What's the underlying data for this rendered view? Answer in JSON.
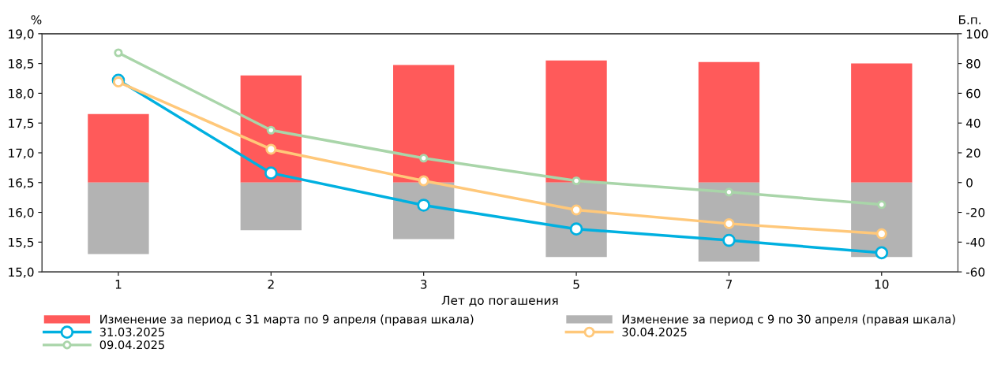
{
  "chart_data": {
    "type": "line",
    "xlabel": "Лет до погашения",
    "ylabel": "%",
    "y2label": "Б.п.",
    "categories": [
      "1",
      "2",
      "3",
      "5",
      "7",
      "10"
    ],
    "series": [
      {
        "name": "Изменение за период с 31 марта по 9 апреля (правая шкала)",
        "type": "bar",
        "axis": "y2",
        "color": "#ff5a5a",
        "values": [
          46,
          72,
          79,
          82,
          81,
          80
        ]
      },
      {
        "name": "Изменение за период с 9 по 30 апреля (правая шкала)",
        "type": "bar",
        "axis": "y2",
        "color": "#b3b3b3",
        "values": [
          -48,
          -32,
          -38,
          -50,
          -53,
          -50
        ]
      },
      {
        "name": "31.03.2025",
        "color": "#00b0e0",
        "values": [
          18.22,
          16.66,
          16.12,
          15.72,
          15.53,
          15.32
        ]
      },
      {
        "name": "30.04.2025",
        "color": "#ffc87a",
        "values": [
          18.19,
          17.06,
          16.53,
          16.04,
          15.81,
          15.64
        ]
      },
      {
        "name": "09.04.2025",
        "color": "#a9d5a9",
        "values": [
          18.68,
          17.38,
          16.91,
          16.53,
          16.34,
          16.13
        ]
      }
    ],
    "ylim": [
      15.0,
      19.0
    ],
    "yticks": [
      {
        "value": 15.0,
        "label": "15,0"
      },
      {
        "value": 15.5,
        "label": "15,5"
      },
      {
        "value": 16.0,
        "label": "16,0"
      },
      {
        "value": 16.5,
        "label": "16,5"
      },
      {
        "value": 17.0,
        "label": "17,0"
      },
      {
        "value": 17.5,
        "label": "17,5"
      },
      {
        "value": 18.0,
        "label": "18,0"
      },
      {
        "value": 18.5,
        "label": "18,5"
      },
      {
        "value": 19.0,
        "label": "19,0"
      }
    ],
    "y2lim": [
      -60,
      100
    ],
    "y2ticks": [
      -60,
      -40,
      -20,
      0,
      20,
      40,
      60,
      80,
      100
    ],
    "stacked": true,
    "marker": "circle",
    "line_style": "solid",
    "grid": false,
    "legend": "bottom"
  }
}
